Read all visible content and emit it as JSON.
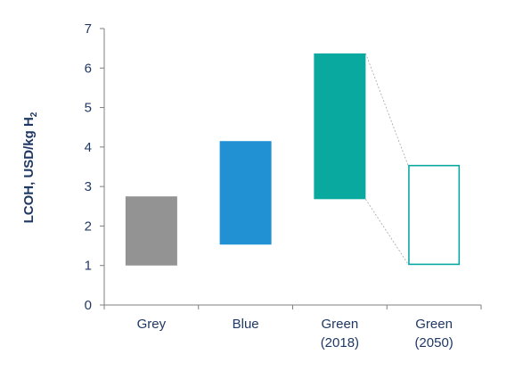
{
  "chart_data": {
    "type": "bar",
    "subtype": "floating-range",
    "categories": [
      [
        "Grey"
      ],
      [
        "Blue"
      ],
      [
        "Green",
        "(2018)"
      ],
      [
        "Green",
        "(2050)"
      ]
    ],
    "ranges": [
      {
        "low": 1.0,
        "high": 2.75,
        "style": "filled",
        "color": "#939393"
      },
      {
        "low": 1.53,
        "high": 4.15,
        "style": "filled",
        "color": "#2191d3"
      },
      {
        "low": 2.68,
        "high": 6.37,
        "style": "filled",
        "color": "#0aa9a0"
      },
      {
        "low": 1.03,
        "high": 3.53,
        "style": "outline",
        "color": "#0aa9a0"
      }
    ],
    "connector": {
      "from": 2,
      "to": 3,
      "style": "dotted"
    },
    "ylabel_main": "LCOH, USD/kg H",
    "ylabel_sub": "2",
    "ylim": [
      0,
      7
    ],
    "yticks": [
      0,
      1,
      2,
      3,
      4,
      5,
      6,
      7
    ],
    "grid": false,
    "colors": {
      "text": "#1f3864",
      "axis": "#7f7f7f"
    }
  }
}
